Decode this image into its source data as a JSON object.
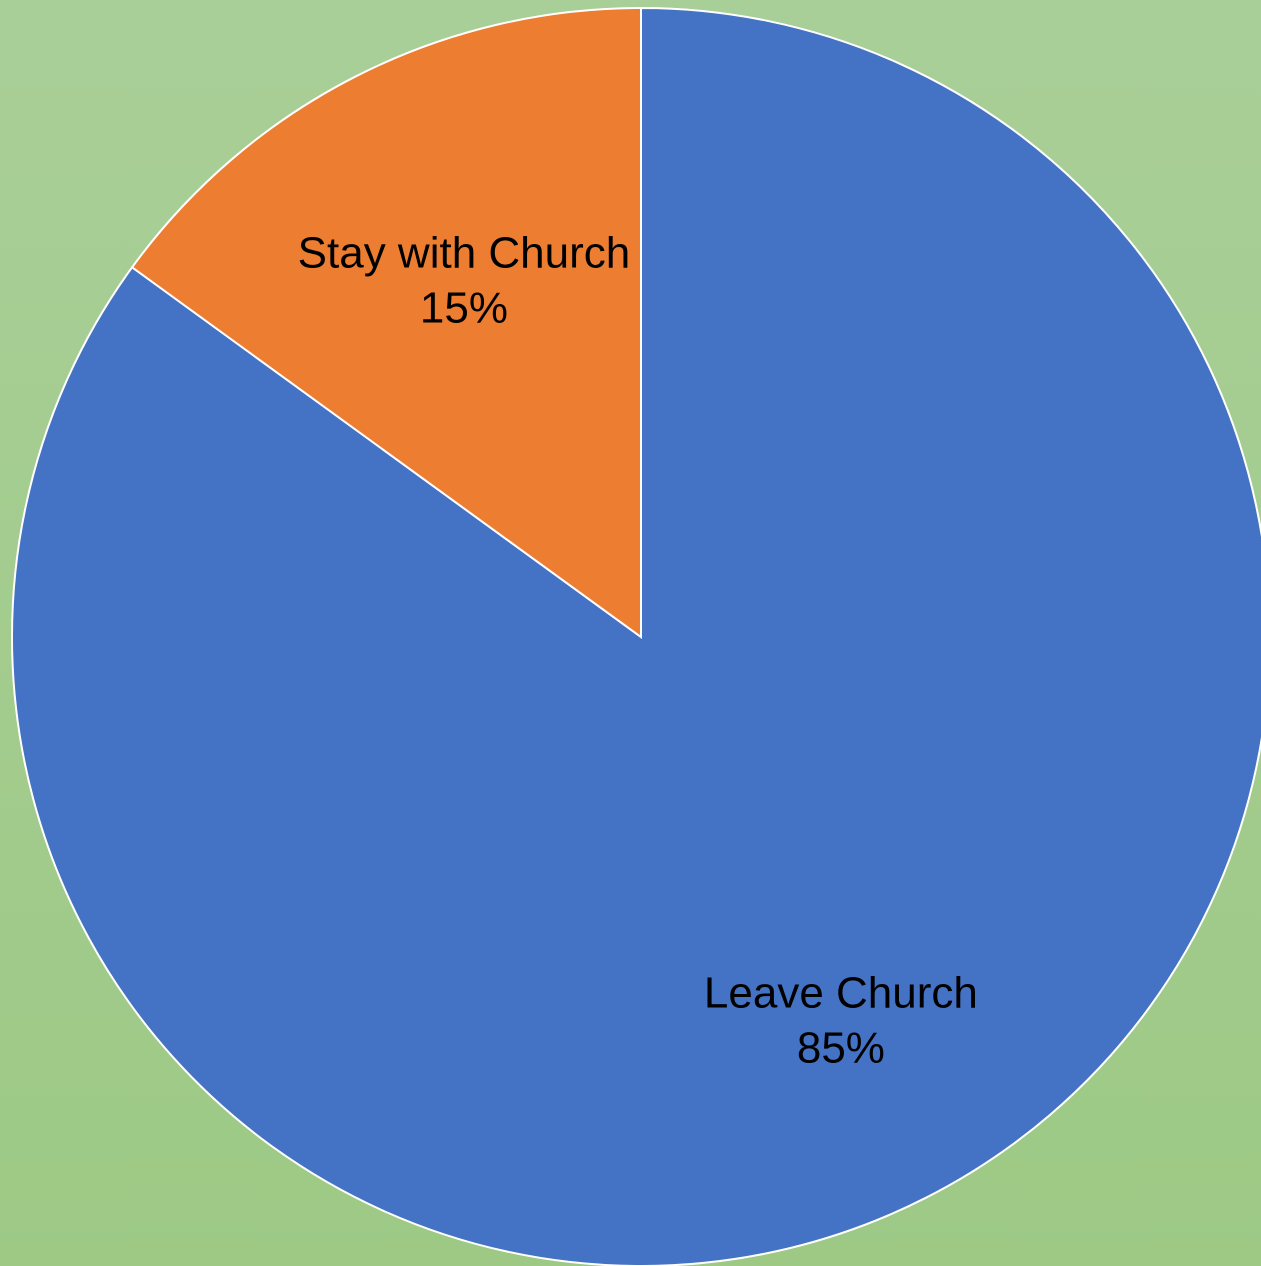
{
  "chart_data": {
    "type": "pie",
    "title": "",
    "start_angle": "12 o'clock, clockwise",
    "slices": [
      {
        "label": "Leave Church",
        "value": 85,
        "percent_label": "85%",
        "color": "#4472c4"
      },
      {
        "label": "Stay with Church",
        "value": 15,
        "percent_label": "15%",
        "color": "#ed7d31"
      }
    ],
    "legend": "none",
    "data_labels": "inside, category name and percentage"
  },
  "background_color": "#a3cc8f"
}
